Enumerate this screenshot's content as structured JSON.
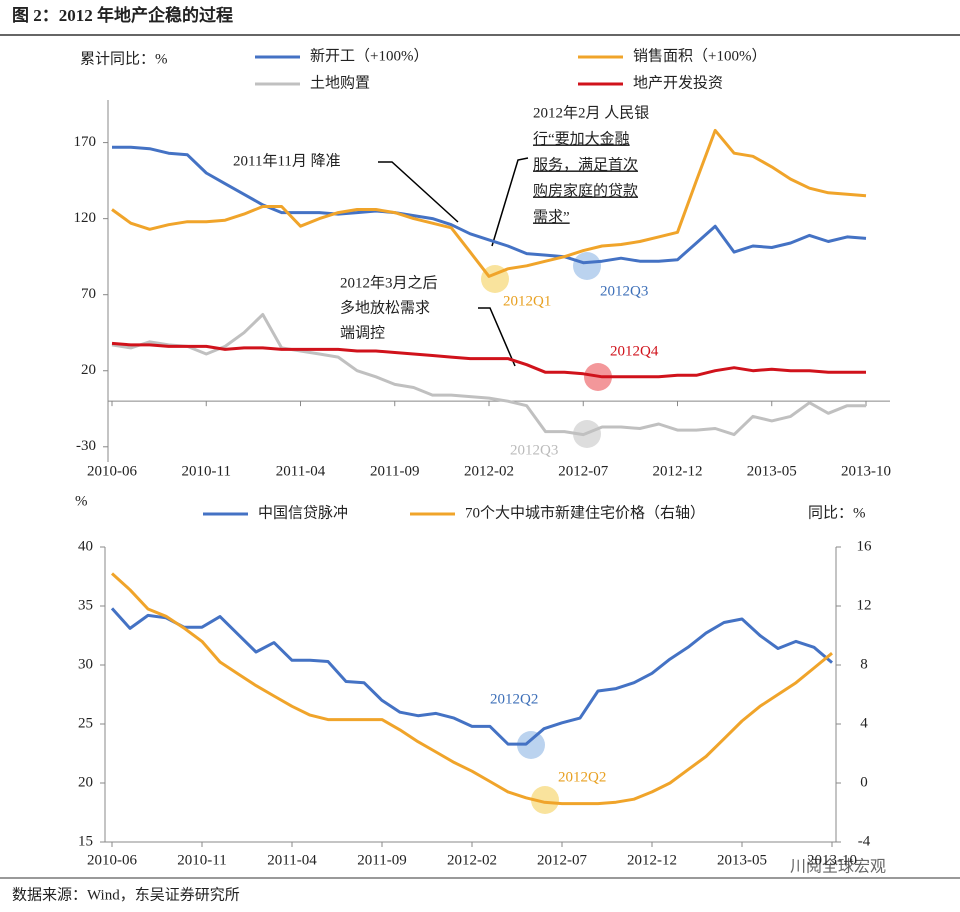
{
  "title": "图 2：2012 年地产企稳的过程",
  "source": "数据来源：Wind，东吴证券研究所",
  "watermark": "川阅全球宏观",
  "chart_data": [
    {
      "type": "line",
      "y_label": "累计同比：%",
      "categories": [
        "2010-06",
        null,
        null,
        null,
        null,
        "2010-11",
        null,
        null,
        null,
        null,
        "2011-04",
        null,
        null,
        null,
        null,
        "2011-09",
        null,
        null,
        null,
        null,
        "2012-02",
        null,
        null,
        null,
        null,
        "2012-07",
        null,
        null,
        null,
        null,
        "2012-12",
        null,
        null,
        null,
        null,
        "2013-05",
        null,
        null,
        null,
        null,
        "2013-10"
      ],
      "ylim": [
        -40,
        198
      ],
      "yticks": [
        -30,
        20,
        70,
        120,
        170
      ],
      "series": [
        {
          "name": "新开工（+100%）",
          "color": "#4472c4",
          "values": [
            167,
            167,
            166,
            163,
            162,
            150,
            143,
            136,
            129,
            124,
            124,
            124,
            123,
            124,
            125,
            124,
            122,
            120,
            116,
            110,
            106,
            102,
            97,
            96,
            95,
            91,
            92,
            94,
            92,
            92,
            93,
            104,
            115,
            98,
            102,
            101,
            104,
            109,
            105,
            108,
            107
          ]
        },
        {
          "name": "销售面积（+100%）",
          "color": "#f0a42a",
          "values": [
            126,
            117,
            113,
            116,
            118,
            118,
            119,
            123,
            128,
            128,
            115,
            120,
            124,
            126,
            126,
            124,
            120,
            117,
            114,
            98,
            82,
            87,
            89,
            92,
            95,
            99,
            102,
            103,
            105,
            108,
            111,
            145,
            178,
            163,
            161,
            154,
            146,
            140,
            137,
            136,
            135
          ]
        },
        {
          "name": "土地购置",
          "color": "#c0c0c0",
          "values": [
            37,
            35,
            39,
            37,
            36,
            31,
            36,
            45,
            57,
            35,
            33,
            31,
            29,
            20,
            16,
            11,
            9,
            4,
            4,
            3,
            2,
            0,
            -3,
            -20,
            -20,
            -22,
            -17,
            -17,
            -18,
            -15,
            -19,
            -19,
            -18,
            -22,
            -10,
            -13,
            -10,
            -1,
            -8,
            -3,
            -3
          ]
        },
        {
          "name": "地产开发投资",
          "color": "#d0121b",
          "values": [
            38,
            37,
            37,
            36,
            36,
            36,
            34,
            35,
            35,
            34,
            34,
            34,
            34,
            33,
            33,
            32,
            31,
            30,
            29,
            28,
            28,
            28,
            24,
            19,
            19,
            18,
            16,
            16,
            16,
            16,
            17,
            17,
            20,
            22,
            20,
            21,
            20,
            20,
            19,
            19,
            19
          ]
        }
      ],
      "annotations": [
        {
          "lines": [
            "2011年11月 降准"
          ]
        },
        {
          "lines": [
            "2012年2月 人民银",
            "行“要加大金融",
            "服务，满足首次",
            "购房家庭的贷款",
            "需求”"
          ]
        },
        {
          "lines": [
            "2012年3月之后",
            "多地放松需求",
            "端调控"
          ]
        },
        {
          "lines": [
            "2012Q1"
          ]
        },
        {
          "lines": [
            "2012Q3"
          ]
        },
        {
          "lines": [
            "2012Q4"
          ]
        },
        {
          "lines": [
            "2012Q3"
          ]
        }
      ]
    },
    {
      "type": "line",
      "y_label": "%",
      "y2_label": "同比：%",
      "categories": [
        "2010-06",
        null,
        null,
        null,
        null,
        "2010-11",
        null,
        null,
        null,
        null,
        "2011-04",
        null,
        null,
        null,
        null,
        "2011-09",
        null,
        null,
        null,
        null,
        "2012-02",
        null,
        null,
        null,
        null,
        "2012-07",
        null,
        null,
        null,
        null,
        "2012-12",
        null,
        null,
        null,
        null,
        "2013-05",
        null,
        null,
        null,
        null,
        "2013-10"
      ],
      "ylim": [
        15,
        40
      ],
      "yticks": [
        15,
        20,
        25,
        30,
        35,
        40
      ],
      "y2lim": [
        -4,
        16
      ],
      "y2ticks": [
        -4,
        0,
        4,
        8,
        12,
        16
      ],
      "series": [
        {
          "name": "中国信贷脉冲",
          "color": "#4472c4",
          "values": [
            34.8,
            33.1,
            34.2,
            34.0,
            33.2,
            33.2,
            34.1,
            32.6,
            31.1,
            31.9,
            30.4,
            30.4,
            30.3,
            28.6,
            28.5,
            27.0,
            26.0,
            25.7,
            25.9,
            25.5,
            24.8,
            24.8,
            23.3,
            23.3,
            24.6,
            25.1,
            25.5,
            27.8,
            28.0,
            28.5,
            29.3,
            30.5,
            31.5,
            32.7,
            33.6,
            33.9,
            32.5,
            31.4,
            32.0,
            31.5,
            30.2
          ]
        },
        {
          "name": "70个大中城市新建住宅价格（右轴）",
          "color": "#f0a42a",
          "axis": "y2",
          "values": [
            14.2,
            13.1,
            11.8,
            11.3,
            10.5,
            9.6,
            8.2,
            7.4,
            6.6,
            5.9,
            5.2,
            4.6,
            4.3,
            4.3,
            4.3,
            4.3,
            3.6,
            2.8,
            2.1,
            1.4,
            0.8,
            0.1,
            -0.6,
            -1.0,
            -1.3,
            -1.4,
            -1.4,
            -1.4,
            -1.3,
            -1.1,
            -0.6,
            0,
            0.9,
            1.8,
            3.0,
            4.2,
            5.2,
            6.0,
            6.8,
            7.8,
            8.8
          ]
        }
      ],
      "annotations": [
        {
          "lines": [
            "2012Q2"
          ]
        },
        {
          "lines": [
            "2012Q2"
          ]
        }
      ]
    }
  ]
}
